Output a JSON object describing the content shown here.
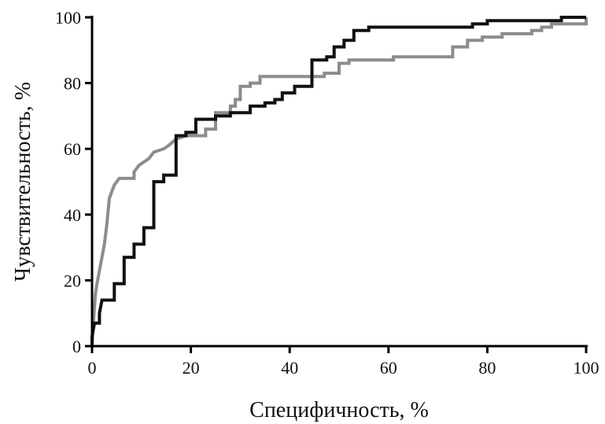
{
  "chart_data": {
    "type": "line",
    "xlabel": "Специфичность, %",
    "ylabel": "Чувствительность, %",
    "xlim": [
      0,
      100
    ],
    "ylim": [
      0,
      100
    ],
    "x_ticks": [
      0,
      20,
      40,
      60,
      80,
      100
    ],
    "y_ticks": [
      0,
      20,
      40,
      60,
      80,
      100
    ],
    "x_tick_labels": [
      "0",
      "20",
      "40",
      "60",
      "80",
      "100"
    ],
    "y_tick_labels": [
      "0",
      "20",
      "40",
      "60",
      "80",
      "100"
    ],
    "grid": false,
    "legend": "none",
    "series": [
      {
        "color": "#111111",
        "step": true,
        "points": [
          [
            0,
            0
          ],
          [
            0,
            3
          ],
          [
            0.5,
            7
          ],
          [
            1.5,
            7
          ],
          [
            1.5,
            10
          ],
          [
            2,
            14
          ],
          [
            4.5,
            14
          ],
          [
            4.5,
            19
          ],
          [
            6.5,
            19
          ],
          [
            6.5,
            27
          ],
          [
            8.5,
            27
          ],
          [
            8.5,
            31
          ],
          [
            10.5,
            31
          ],
          [
            10.5,
            36
          ],
          [
            12.5,
            36
          ],
          [
            12.5,
            50
          ],
          [
            14.5,
            50
          ],
          [
            14.5,
            52
          ],
          [
            17,
            52
          ],
          [
            17,
            64
          ],
          [
            19,
            64
          ],
          [
            19,
            65
          ],
          [
            21,
            65
          ],
          [
            21,
            69
          ],
          [
            25,
            69
          ],
          [
            25,
            70
          ],
          [
            28,
            70
          ],
          [
            28,
            71
          ],
          [
            32,
            71
          ],
          [
            32,
            73
          ],
          [
            35,
            73
          ],
          [
            35,
            74
          ],
          [
            37,
            74
          ],
          [
            37,
            75
          ],
          [
            38.5,
            75
          ],
          [
            38.5,
            77
          ],
          [
            41,
            77
          ],
          [
            41,
            79
          ],
          [
            44.5,
            79
          ],
          [
            44.5,
            87
          ],
          [
            47.5,
            87
          ],
          [
            47.5,
            88
          ],
          [
            49,
            88
          ],
          [
            49,
            91
          ],
          [
            51,
            91
          ],
          [
            51,
            93
          ],
          [
            53,
            93
          ],
          [
            53,
            96
          ],
          [
            56,
            96
          ],
          [
            56,
            97
          ],
          [
            77,
            97
          ],
          [
            77,
            98
          ],
          [
            80,
            98
          ],
          [
            80,
            99
          ],
          [
            95,
            99
          ],
          [
            95,
            100
          ],
          [
            100,
            100
          ]
        ]
      },
      {
        "color": "#8c8c8c",
        "step": true,
        "points": [
          [
            0,
            0
          ],
          [
            0.3,
            8
          ],
          [
            0.7,
            16
          ],
          [
            1,
            19
          ],
          [
            1.5,
            23
          ],
          [
            2,
            27
          ],
          [
            2.5,
            31
          ],
          [
            3,
            37
          ],
          [
            3.5,
            45
          ],
          [
            4,
            47
          ],
          [
            4.5,
            49
          ],
          [
            5.5,
            51
          ],
          [
            8.5,
            51
          ],
          [
            8.5,
            53
          ],
          [
            9.5,
            55
          ],
          [
            10.5,
            56
          ],
          [
            11.5,
            57
          ],
          [
            12.5,
            59
          ],
          [
            14.5,
            60
          ],
          [
            15.5,
            61
          ],
          [
            17,
            63
          ],
          [
            19,
            64
          ],
          [
            23,
            64
          ],
          [
            23,
            66
          ],
          [
            25,
            66
          ],
          [
            25,
            71
          ],
          [
            28,
            71
          ],
          [
            28,
            73
          ],
          [
            29,
            73
          ],
          [
            29,
            75
          ],
          [
            30,
            75
          ],
          [
            30,
            79
          ],
          [
            32,
            79
          ],
          [
            32,
            80
          ],
          [
            34,
            80
          ],
          [
            34,
            82
          ],
          [
            47,
            82
          ],
          [
            47,
            83
          ],
          [
            50,
            83
          ],
          [
            50,
            86
          ],
          [
            52,
            86
          ],
          [
            52,
            87
          ],
          [
            61,
            87
          ],
          [
            61,
            88
          ],
          [
            73,
            88
          ],
          [
            73,
            91
          ],
          [
            76,
            91
          ],
          [
            76,
            93
          ],
          [
            79,
            93
          ],
          [
            79,
            94
          ],
          [
            83,
            94
          ],
          [
            83,
            95
          ],
          [
            89,
            95
          ],
          [
            89,
            96
          ],
          [
            91,
            96
          ],
          [
            91,
            97
          ],
          [
            93,
            97
          ],
          [
            93,
            98
          ],
          [
            100,
            98
          ],
          [
            100,
            100
          ]
        ]
      }
    ]
  }
}
